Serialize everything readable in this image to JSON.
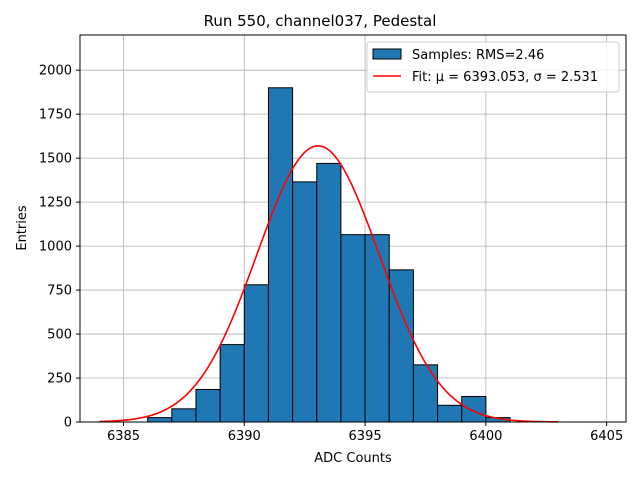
{
  "chart_data": {
    "type": "bar",
    "title": "Run 550, channel037, Pedestal",
    "xlabel": "ADC Counts",
    "ylabel": "Entries",
    "xlim": [
      6383.2,
      6405.8
    ],
    "ylim": [
      0,
      2200
    ],
    "xticks": [
      6385,
      6390,
      6395,
      6400,
      6405
    ],
    "yticks": [
      0,
      250,
      500,
      750,
      1000,
      1250,
      1500,
      1750,
      2000
    ],
    "grid": true,
    "legend_position": "top-right",
    "histogram": {
      "name": "Samples: RMS=2.46",
      "bin_edges": [
        6386,
        6387,
        6388,
        6389,
        6390,
        6391,
        6392,
        6393,
        6394,
        6395,
        6396,
        6397,
        6398,
        6399,
        6400,
        6401
      ],
      "counts": [
        25,
        75,
        185,
        440,
        780,
        1900,
        1365,
        1470,
        1065,
        1065,
        865,
        325,
        95,
        145,
        25
      ],
      "color": "#1f77b4"
    },
    "fit": {
      "name": "Fit: μ = 6393.053, σ = 2.531",
      "mu": 6393.053,
      "sigma": 2.531,
      "amplitude": 1570,
      "x_range": [
        6384,
        6403
      ],
      "color": "#ff0000"
    }
  }
}
